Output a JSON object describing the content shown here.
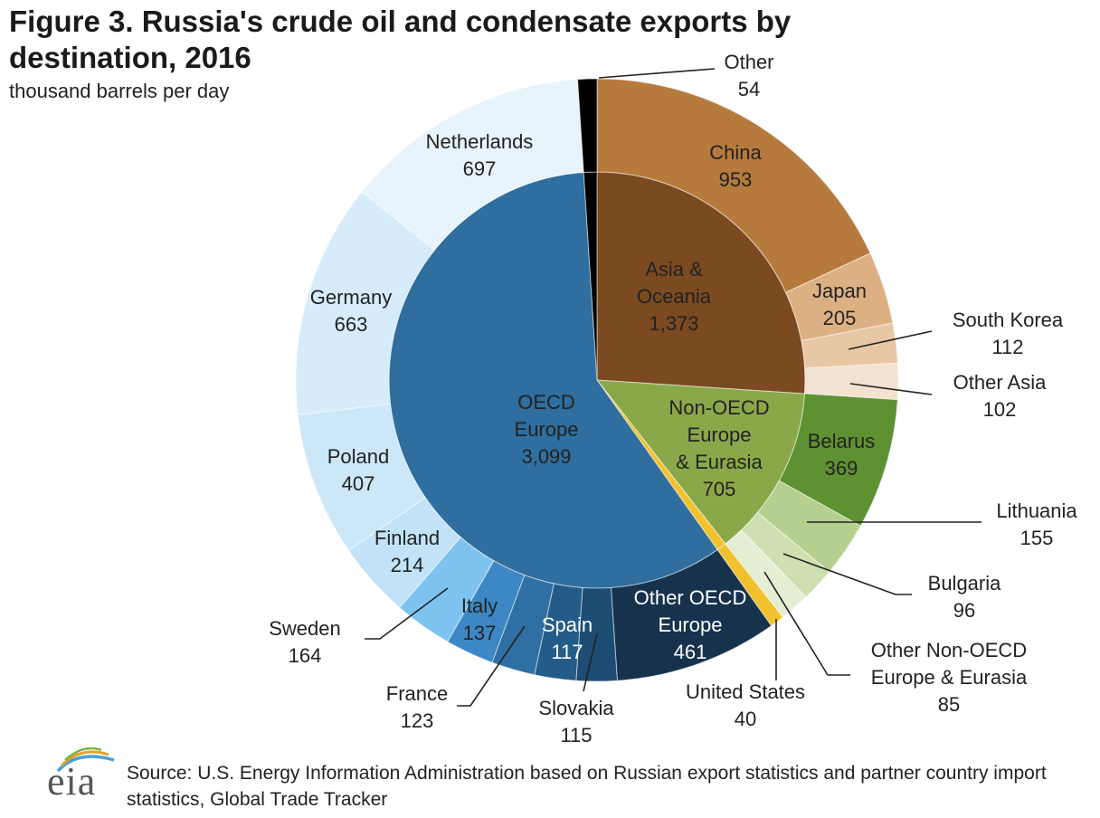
{
  "title": "Figure 3. Russia's crude oil and condensate exports by destination, 2016",
  "subtitle": "thousand barrels per day",
  "source": "Source: U.S. Energy Information Administration based on Russian export statistics and partner country import statistics, Global Trade Tracker",
  "logo_text": "eia",
  "chart_data": {
    "type": "pie",
    "subtype": "nested-donut",
    "unit": "thousand barrels per day",
    "inner": [
      {
        "name": "Asia & Oceania",
        "value": "1,373",
        "num": 1373,
        "color": "#7b4a20"
      },
      {
        "name": "Non-OECD Europe & Eurasia",
        "value": "705",
        "num": 705,
        "color": "#8aa84a"
      },
      {
        "name": "United States",
        "value": "40",
        "num": 40,
        "color": "#f2c12e"
      },
      {
        "name": "OECD Europe",
        "value": "3,099",
        "num": 3099,
        "color": "#2f6e9e"
      },
      {
        "name": "Other",
        "value": "54",
        "num": 54,
        "color": "#000000"
      }
    ],
    "outer": [
      {
        "name": "China",
        "value": "953",
        "num": 953,
        "color": "#b77a3d"
      },
      {
        "name": "Japan",
        "value": "205",
        "num": 205,
        "color": "#ddb084"
      },
      {
        "name": "South Korea",
        "value": "112",
        "num": 112,
        "color": "#e8c8a4"
      },
      {
        "name": "Other Asia",
        "value": "102",
        "num": 102,
        "color": "#f2e2cf"
      },
      {
        "name": "Belarus",
        "value": "369",
        "num": 369,
        "color": "#5e9131"
      },
      {
        "name": "Lithuania",
        "value": "155",
        "num": 155,
        "color": "#b5cf8e"
      },
      {
        "name": "Bulgaria",
        "value": "96",
        "num": 96,
        "color": "#cfe0b0"
      },
      {
        "name": "Other Non-OECD Europe & Eurasia",
        "value": "85",
        "num": 85,
        "color": "#e4eed2"
      },
      {
        "name": "United States",
        "value": "40",
        "num": 40,
        "color": "#f2c12e"
      },
      {
        "name": "Other OECD Europe",
        "value": "461",
        "num": 461,
        "color": "#16324d"
      },
      {
        "name": "Slovakia",
        "value": "115",
        "num": 115,
        "color": "#1e4d74"
      },
      {
        "name": "Spain",
        "value": "117",
        "num": 117,
        "color": "#235c88"
      },
      {
        "name": "France",
        "value": "123",
        "num": 123,
        "color": "#2f6fa3"
      },
      {
        "name": "Italy",
        "value": "137",
        "num": 137,
        "color": "#3d87c4"
      },
      {
        "name": "Sweden",
        "value": "164",
        "num": 164,
        "color": "#7ec3f0"
      },
      {
        "name": "Finland",
        "value": "214",
        "num": 214,
        "color": "#c2e3f7"
      },
      {
        "name": "Poland",
        "value": "407",
        "num": 407,
        "color": "#cce7f8"
      },
      {
        "name": "Germany",
        "value": "663",
        "num": 663,
        "color": "#d6ecfa"
      },
      {
        "name": "Netherlands",
        "value": "697",
        "num": 697,
        "color": "#e8f4fc"
      },
      {
        "name": "Other",
        "value": "54",
        "num": 54,
        "color": "#000000"
      }
    ]
  }
}
